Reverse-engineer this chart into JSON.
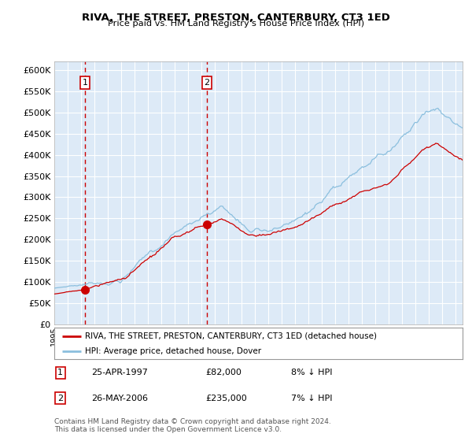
{
  "title": "RIVA, THE STREET, PRESTON, CANTERBURY, CT3 1ED",
  "subtitle": "Price paid vs. HM Land Registry's House Price Index (HPI)",
  "legend_line1": "RIVA, THE STREET, PRESTON, CANTERBURY, CT3 1ED (detached house)",
  "legend_line2": "HPI: Average price, detached house, Dover",
  "sale1_date": "25-APR-1997",
  "sale1_price": "£82,000",
  "sale1_hpi": "8% ↓ HPI",
  "sale1_year": 1997.3,
  "sale1_value": 82000,
  "sale2_date": "26-MAY-2006",
  "sale2_price": "£235,000",
  "sale2_hpi": "7% ↓ HPI",
  "sale2_year": 2006.4,
  "sale2_value": 235000,
  "hpi_color": "#8bbfde",
  "price_color": "#cc0000",
  "marker_color": "#cc0000",
  "plot_bg": "#ddeaf7",
  "grid_color": "#ffffff",
  "vline_color": "#cc0000",
  "footnote": "Contains HM Land Registry data © Crown copyright and database right 2024.\nThis data is licensed under the Open Government Licence v3.0.",
  "ylim": [
    0,
    620000
  ],
  "yticks": [
    0,
    50000,
    100000,
    150000,
    200000,
    250000,
    300000,
    350000,
    400000,
    450000,
    500000,
    550000,
    600000
  ],
  "xlim_start": 1995.0,
  "xlim_end": 2025.5
}
